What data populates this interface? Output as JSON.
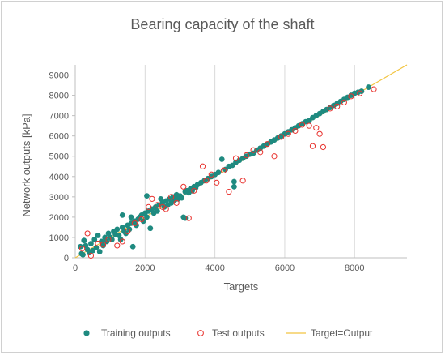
{
  "chart_data": {
    "type": "scatter",
    "title": "Bearing capacity of the shaft",
    "xlabel": "Targets",
    "ylabel": "Network outputs [kPa]",
    "xlim": [
      0,
      9500
    ],
    "ylim": [
      0,
      9500
    ],
    "xticks": [
      0,
      2000,
      4000,
      6000,
      8000
    ],
    "yticks": [
      0,
      1000,
      2000,
      3000,
      4000,
      5000,
      6000,
      7000,
      8000,
      9000
    ],
    "xtick_labels": [
      "0",
      "2000",
      "4000",
      "6000",
      "8000"
    ],
    "ytick_labels": [
      "0",
      "1000",
      "2000",
      "3000",
      "4000",
      "5000",
      "6000",
      "7000",
      "8000",
      "9000"
    ],
    "grid": "vertical",
    "legend_position": "bottom",
    "colors": {
      "training": "#1f8a80",
      "test": "#e8322e",
      "target_line": "#f2c440"
    },
    "series": [
      {
        "name": "Training outputs",
        "marker": "filled-circle",
        "points": [
          [
            150,
            550
          ],
          [
            180,
            200
          ],
          [
            220,
            150
          ],
          [
            250,
            850
          ],
          [
            300,
            600
          ],
          [
            350,
            400
          ],
          [
            400,
            250
          ],
          [
            450,
            700
          ],
          [
            500,
            350
          ],
          [
            550,
            900
          ],
          [
            600,
            500
          ],
          [
            650,
            1100
          ],
          [
            700,
            300
          ],
          [
            750,
            800
          ],
          [
            800,
            600
          ],
          [
            850,
            1000
          ],
          [
            900,
            800
          ],
          [
            950,
            1200
          ],
          [
            1000,
            1000
          ],
          [
            1050,
            900
          ],
          [
            1100,
            1300
          ],
          [
            1150,
            1150
          ],
          [
            1200,
            1400
          ],
          [
            1250,
            1100
          ],
          [
            1300,
            900
          ],
          [
            1350,
            1500
          ],
          [
            1400,
            1300
          ],
          [
            1450,
            1200
          ],
          [
            1500,
            1600
          ],
          [
            1550,
            1400
          ],
          [
            1600,
            1700
          ],
          [
            1650,
            550
          ],
          [
            1700,
            1800
          ],
          [
            1750,
            1600
          ],
          [
            1800,
            1900
          ],
          [
            1850,
            2000
          ],
          [
            1900,
            2100
          ],
          [
            1950,
            1800
          ],
          [
            2000,
            2200
          ],
          [
            2050,
            2000
          ],
          [
            2100,
            2300
          ],
          [
            2150,
            1450
          ],
          [
            2200,
            2400
          ],
          [
            2250,
            2200
          ],
          [
            2300,
            2500
          ],
          [
            2350,
            2300
          ],
          [
            2400,
            2600
          ],
          [
            2450,
            2900
          ],
          [
            2500,
            2700
          ],
          [
            2550,
            2500
          ],
          [
            2600,
            2800
          ],
          [
            2650,
            2600
          ],
          [
            2700,
            2900
          ],
          [
            2750,
            2700
          ],
          [
            2800,
            3000
          ],
          [
            2850,
            2850
          ],
          [
            2900,
            3100
          ],
          [
            2950,
            2900
          ],
          [
            3000,
            3050
          ],
          [
            3050,
            2950
          ],
          [
            3100,
            2000
          ],
          [
            3150,
            3250
          ],
          [
            3200,
            3300
          ],
          [
            3250,
            3200
          ],
          [
            3300,
            3400
          ],
          [
            3350,
            3300
          ],
          [
            3400,
            3500
          ],
          [
            3450,
            3450
          ],
          [
            3500,
            3600
          ],
          [
            3600,
            3700
          ],
          [
            3700,
            3800
          ],
          [
            3800,
            3900
          ],
          [
            3900,
            4000
          ],
          [
            4000,
            4100
          ],
          [
            4100,
            4200
          ],
          [
            4200,
            4850
          ],
          [
            4300,
            4350
          ],
          [
            4400,
            4500
          ],
          [
            4500,
            4550
          ],
          [
            4550,
            3500
          ],
          [
            4600,
            4700
          ],
          [
            4700,
            4800
          ],
          [
            4800,
            4900
          ],
          [
            4900,
            5000
          ],
          [
            5000,
            5100
          ],
          [
            5100,
            5150
          ],
          [
            5200,
            5300
          ],
          [
            5300,
            5400
          ],
          [
            5400,
            5500
          ],
          [
            5500,
            5600
          ],
          [
            5600,
            5700
          ],
          [
            5700,
            5800
          ],
          [
            5800,
            5900
          ],
          [
            5900,
            6000
          ],
          [
            6000,
            6100
          ],
          [
            6100,
            6200
          ],
          [
            6200,
            6300
          ],
          [
            6300,
            6400
          ],
          [
            6400,
            6500
          ],
          [
            6500,
            6600
          ],
          [
            6600,
            6700
          ],
          [
            6700,
            6750
          ],
          [
            6800,
            6900
          ],
          [
            6900,
            7000
          ],
          [
            7000,
            7100
          ],
          [
            7100,
            7200
          ],
          [
            7200,
            7300
          ],
          [
            7300,
            7400
          ],
          [
            7400,
            7500
          ],
          [
            7500,
            7600
          ],
          [
            7600,
            7700
          ],
          [
            7700,
            7800
          ],
          [
            7800,
            7900
          ],
          [
            7900,
            8000
          ],
          [
            8000,
            8100
          ],
          [
            8100,
            8150
          ],
          [
            8200,
            8200
          ],
          [
            8400,
            8400
          ],
          [
            4550,
            3750
          ],
          [
            3150,
            1950
          ],
          [
            2050,
            3050
          ],
          [
            1350,
            2100
          ],
          [
            1600,
            2000
          ]
        ]
      },
      {
        "name": "Test outputs",
        "marker": "open-circle",
        "points": [
          [
            200,
            450
          ],
          [
            350,
            1200
          ],
          [
            450,
            100
          ],
          [
            650,
            700
          ],
          [
            800,
            650
          ],
          [
            950,
            900
          ],
          [
            1200,
            600
          ],
          [
            1350,
            800
          ],
          [
            1500,
            1300
          ],
          [
            1700,
            1700
          ],
          [
            1900,
            1900
          ],
          [
            2100,
            2500
          ],
          [
            2200,
            2900
          ],
          [
            2350,
            2600
          ],
          [
            2500,
            2500
          ],
          [
            2600,
            2400
          ],
          [
            2750,
            3000
          ],
          [
            2900,
            2700
          ],
          [
            3100,
            3500
          ],
          [
            3250,
            1950
          ],
          [
            3400,
            3300
          ],
          [
            3650,
            4500
          ],
          [
            3750,
            3800
          ],
          [
            3900,
            4100
          ],
          [
            4050,
            3700
          ],
          [
            4250,
            4300
          ],
          [
            4400,
            3250
          ],
          [
            4600,
            4900
          ],
          [
            4800,
            3800
          ],
          [
            4900,
            5050
          ],
          [
            5100,
            5300
          ],
          [
            5300,
            5200
          ],
          [
            5500,
            5600
          ],
          [
            5700,
            5000
          ],
          [
            5900,
            5950
          ],
          [
            6100,
            6100
          ],
          [
            6300,
            6250
          ],
          [
            6500,
            6550
          ],
          [
            6700,
            6500
          ],
          [
            6800,
            5500
          ],
          [
            6900,
            6400
          ],
          [
            7000,
            6100
          ],
          [
            7100,
            5450
          ],
          [
            7300,
            7350
          ],
          [
            7500,
            7450
          ],
          [
            7700,
            7650
          ],
          [
            7900,
            7950
          ],
          [
            8150,
            8100
          ],
          [
            8550,
            8300
          ]
        ]
      },
      {
        "name": "Target=Output",
        "marker": "line",
        "points": [
          [
            0,
            0
          ],
          [
            9500,
            9500
          ]
        ]
      }
    ]
  }
}
